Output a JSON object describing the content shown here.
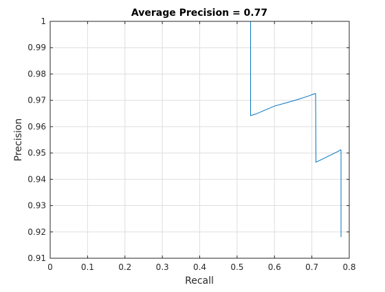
{
  "chart_data": {
    "type": "line",
    "title": "Average Precision = 0.77",
    "xlabel": "Recall",
    "ylabel": "Precision",
    "xlim": [
      0,
      0.8
    ],
    "ylim": [
      0.91,
      1.0
    ],
    "xticks": [
      0,
      0.1,
      0.2,
      0.3,
      0.4,
      0.5,
      0.6,
      0.7,
      0.8
    ],
    "xtick_labels": [
      "0",
      "0.1",
      "0.2",
      "0.3",
      "0.4",
      "0.5",
      "0.6",
      "0.7",
      "0.8"
    ],
    "yticks": [
      0.91,
      0.92,
      0.93,
      0.94,
      0.95,
      0.96,
      0.97,
      0.98,
      0.99,
      1.0
    ],
    "ytick_labels": [
      "0.91",
      "0.92",
      "0.93",
      "0.94",
      "0.95",
      "0.96",
      "0.97",
      "0.98",
      "0.99",
      "1"
    ],
    "grid": true,
    "legend": "none",
    "series": [
      {
        "color": "#0072BD",
        "x": [
          0,
          0.535,
          0.536,
          0.536,
          0.55,
          0.57,
          0.6,
          0.63,
          0.66,
          0.69,
          0.705,
          0.709,
          0.71,
          0.711,
          0.73,
          0.75,
          0.77,
          0.777,
          0.778,
          0.778
        ],
        "y": [
          1.0,
          1.0,
          1.0,
          0.9642,
          0.9648,
          0.966,
          0.9678,
          0.969,
          0.9702,
          0.9716,
          0.9724,
          0.9726,
          0.9725,
          0.9465,
          0.9478,
          0.9492,
          0.9506,
          0.9512,
          0.951,
          0.918
        ]
      }
    ]
  }
}
